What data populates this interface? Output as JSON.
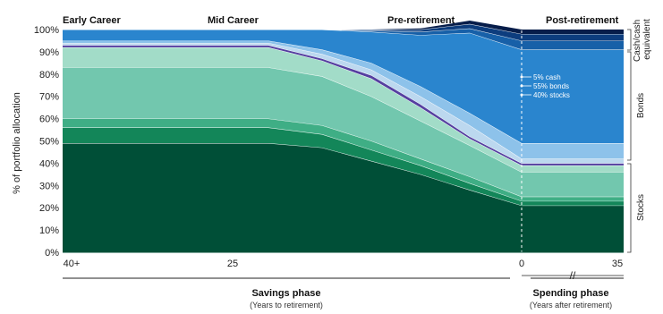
{
  "chart_data": {
    "type": "area",
    "stacked": true,
    "phase_labels": [
      "Early Career",
      "Mid Career",
      "Pre-retirement",
      "Post-retirement"
    ],
    "ylabel": "% of portfolio allocation",
    "ylim": [
      0,
      100
    ],
    "yticks": [
      "0%",
      "10%",
      "20%",
      "30%",
      "40%",
      "50%",
      "60%",
      "70%",
      "80%",
      "90%",
      "100%"
    ],
    "xticks": [
      "40+",
      "25",
      "0",
      "35"
    ],
    "x_points": [
      "40+",
      "25",
      "",
      "",
      "",
      "",
      "0",
      "0",
      "35"
    ],
    "series": [
      {
        "values": [
          49,
          49,
          47,
          41,
          35,
          28,
          21,
          21,
          21
        ],
        "color": "#004f37"
      },
      {
        "values": [
          7,
          7,
          6,
          5,
          4,
          3,
          2,
          2,
          2
        ],
        "color": "#138659"
      },
      {
        "values": [
          4,
          4,
          4,
          4,
          3,
          3,
          2,
          2,
          2
        ],
        "color": "#3fae85"
      },
      {
        "values": [
          23,
          23,
          22,
          20,
          17,
          14,
          11,
          11,
          11
        ],
        "color": "#72c7ae"
      },
      {
        "values": [
          9,
          9,
          7,
          8,
          6,
          3,
          3,
          3,
          3
        ],
        "color": "#a2dcc8"
      },
      {
        "values": [
          1,
          1,
          1,
          1.5,
          1.5,
          1,
          1,
          1,
          1
        ],
        "color": "#553fa0"
      },
      {
        "values": [
          1,
          1,
          2,
          2.5,
          3.5,
          5,
          2,
          2,
          2
        ],
        "color": "#bcd8ef"
      },
      {
        "values": [
          1,
          1,
          2,
          3,
          4.5,
          5.5,
          7,
          7,
          7
        ],
        "color": "#8dc2ea"
      },
      {
        "values": [
          5,
          5,
          9,
          14,
          23,
          36,
          42,
          42,
          42
        ],
        "color": "#2a85ce"
      },
      {
        "values": [
          0,
          0,
          0,
          0.5,
          1.5,
          2,
          4,
          4,
          4
        ],
        "color": "#1760a8"
      },
      {
        "values": [
          0,
          0,
          0,
          0.5,
          1,
          2,
          3,
          3,
          3
        ],
        "color": "#0d3d7e"
      },
      {
        "values": [
          0,
          0,
          0,
          0,
          0.5,
          1.5,
          2,
          2,
          2
        ],
        "color": "#071d4a"
      }
    ],
    "annotations": [
      "5% cash",
      "55% bonds",
      "40% stocks"
    ],
    "category_labels": [
      "Cash/cash equivalent",
      "Bonds",
      "Stocks"
    ],
    "bottom_labels": {
      "savings_title": "Savings phase",
      "savings_sub": "(Years to retirement)",
      "spending_title": "Spending phase",
      "spending_sub": "(Years after retirement)"
    }
  }
}
